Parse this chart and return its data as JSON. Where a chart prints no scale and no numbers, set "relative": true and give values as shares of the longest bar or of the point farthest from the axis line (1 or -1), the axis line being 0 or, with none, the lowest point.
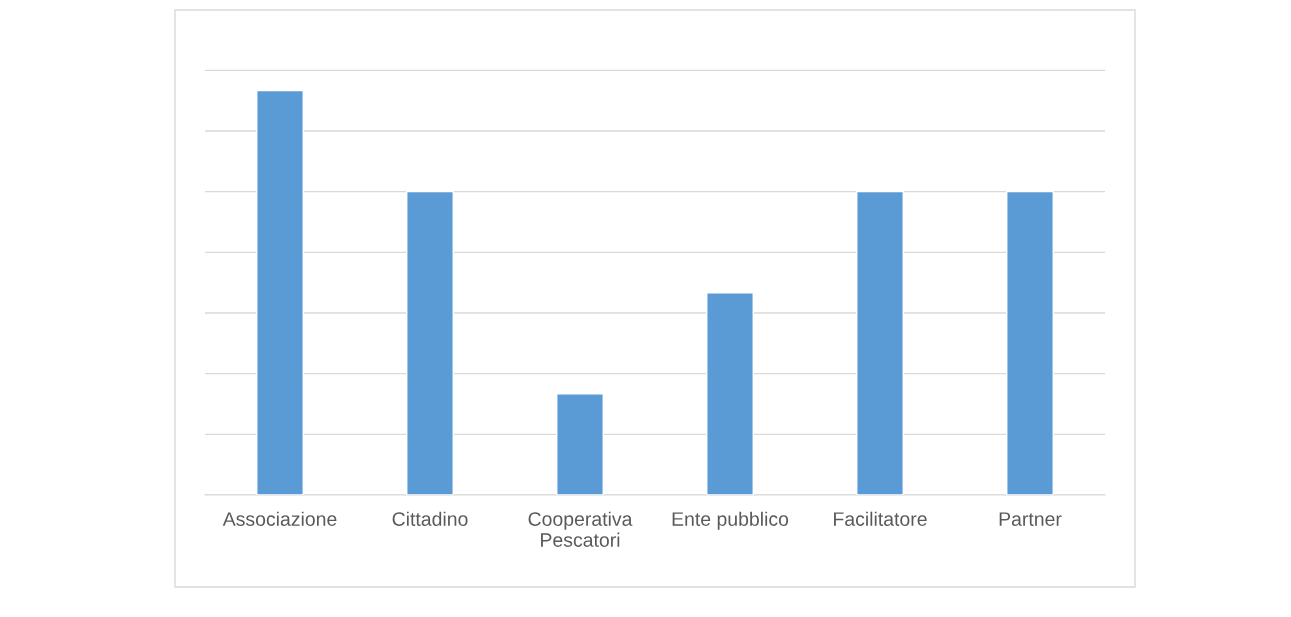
{
  "chart_data": {
    "type": "bar",
    "relative": true,
    "categories": [
      "Associazione",
      "Cittadino",
      "Cooperativa\nPescatori",
      "Ente pubblico",
      "Facilitatore",
      "Partner"
    ],
    "values": [
      1,
      0.75,
      0.25,
      0.5,
      0.75,
      0.75
    ],
    "color": "#5b9bd5",
    "grid": "y",
    "legend": false
  }
}
